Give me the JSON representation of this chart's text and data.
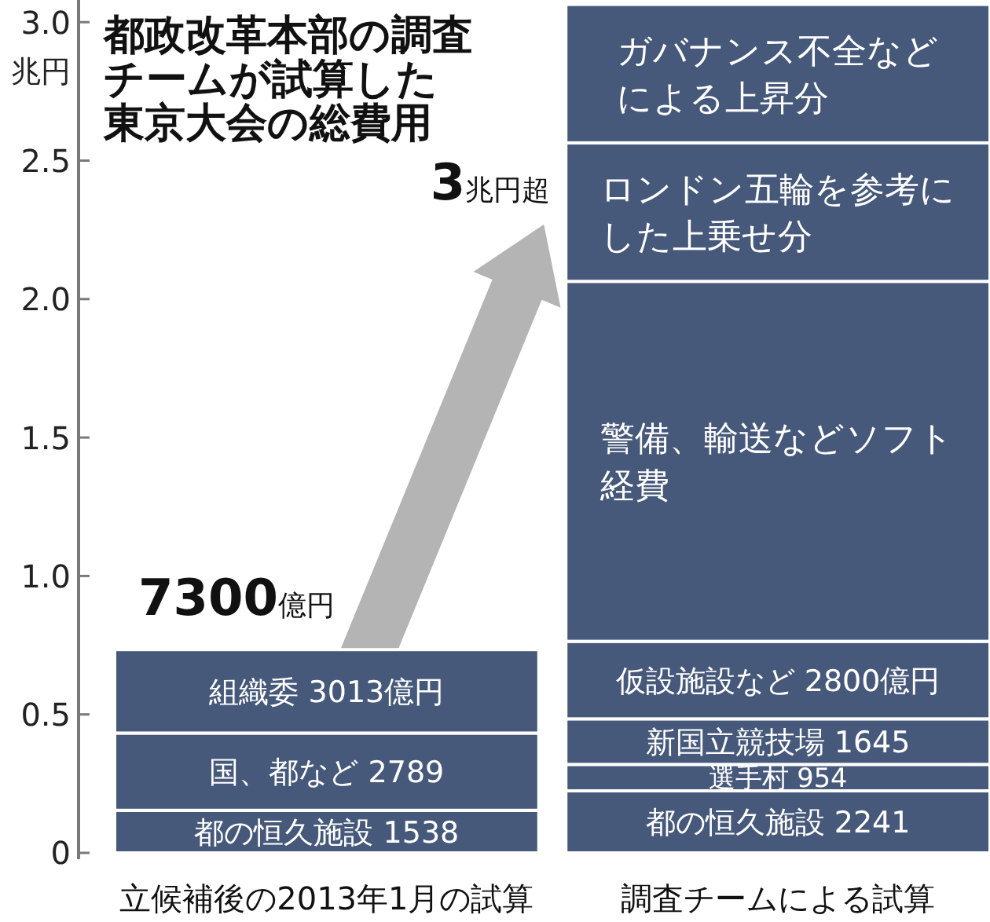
{
  "chart_data": {
    "type": "bar",
    "title": "都政改革本部の調査チームが試算した東京大会の総費用",
    "ylabel": "兆円",
    "categories": [
      "立候補後の2013年1月の試算",
      "調査チームによる試算"
    ],
    "stacked": true,
    "series": [
      {
        "name": "都の恒久施設 1538",
        "color": "#46597b",
        "values": [
          0.1538,
          null
        ]
      },
      {
        "name": "国、都など 2789",
        "color": "#46597b",
        "values": [
          0.2789,
          null
        ]
      },
      {
        "name": "組織委 3013億円",
        "color": "#46597b",
        "values": [
          0.3013,
          null
        ]
      },
      {
        "name": "都の恒久施設 2241",
        "color": "#46597b",
        "values": [
          null,
          0.2241
        ]
      },
      {
        "name": "選手村 954",
        "color": "#46597b",
        "values": [
          null,
          0.0954
        ]
      },
      {
        "name": "新国立競技場 1645",
        "color": "#46597b",
        "values": [
          null,
          0.1645
        ]
      },
      {
        "name": "仮設施設など 2800億円",
        "color": "#46597b",
        "values": [
          null,
          0.28
        ]
      },
      {
        "name": "警備、輸送などソフト経費",
        "color": "#46597b",
        "values": [
          null,
          1.3
        ]
      },
      {
        "name": "ロンドン五輪を参考にした上乗せ分",
        "color": "#46597b",
        "values": [
          null,
          0.5
        ]
      },
      {
        "name": "ガバナンス不全などによる上昇分",
        "color": "#46597b",
        "values": [
          null,
          0.5
        ]
      }
    ],
    "annotations": [
      "7300億円",
      "3兆円超"
    ],
    "ylim": [
      0,
      3.08
    ],
    "yticks": [
      0,
      0.5,
      {
        "value": 1,
        "label": "1.0"
      },
      1.5,
      {
        "value": 2,
        "label": "2.0"
      },
      2.5,
      {
        "value": 3,
        "label": "3.0"
      }
    ]
  }
}
